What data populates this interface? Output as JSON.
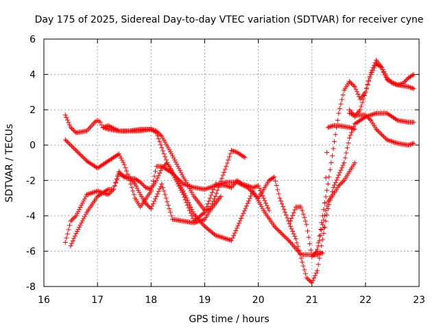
{
  "chart_data": {
    "type": "scatter",
    "title": "Day 175 of 2025, Sidereal Day-to-day VTEC variation (SDTVAR) for receiver cyne",
    "xlabel": "GPS time / hours",
    "ylabel": "SDTVAR / TECUs",
    "xlim": [
      16,
      23
    ],
    "ylim": [
      -8,
      6
    ],
    "xticks": [
      16,
      17,
      18,
      19,
      20,
      21,
      22,
      23
    ],
    "yticks": [
      -8,
      -6,
      -4,
      -2,
      0,
      2,
      4,
      6
    ],
    "grid": true,
    "marker": "+",
    "color": "#ff0000",
    "series": [
      {
        "x": [
          16.4,
          16.5,
          16.6,
          16.8,
          16.95,
          17.0,
          17.05,
          17.1,
          17.2,
          17.4,
          17.6,
          17.8,
          18.0,
          18.1,
          18.2,
          18.4,
          18.6,
          18.8,
          19.0,
          19.1,
          19.2,
          19.4,
          19.5,
          19.6,
          19.75
        ],
        "y": [
          1.7,
          1.0,
          0.7,
          0.8,
          1.3,
          1.4,
          1.3,
          1.0,
          0.9,
          0.8,
          0.8,
          0.9,
          0.9,
          0.8,
          0.5,
          -0.6,
          -1.8,
          -2.9,
          -3.7,
          -3.6,
          -2.9,
          -1.2,
          -0.3,
          -0.4,
          -0.7
        ]
      },
      {
        "x": [
          17.1,
          17.2,
          17.4,
          17.6,
          17.8,
          18.0,
          18.1,
          18.3,
          18.6,
          18.8,
          19.0,
          19.2,
          19.4,
          19.5,
          19.7,
          19.9,
          20.1,
          20.3,
          20.6,
          20.8,
          20.95,
          21.0,
          21.1,
          21.2,
          21.3,
          21.4,
          21.5,
          21.7,
          21.8
        ],
        "y": [
          1.0,
          1.1,
          0.8,
          0.8,
          0.8,
          0.9,
          0.7,
          -1.0,
          -2.6,
          -3.9,
          -4.6,
          -5.1,
          -5.3,
          -5.4,
          -4.0,
          -2.6,
          -3.7,
          -4.6,
          -5.5,
          -6.2,
          -6.2,
          -6.2,
          -6.2,
          -6.1,
          1.0,
          1.1,
          1.1,
          1.0,
          0.9
        ]
      },
      {
        "x": [
          16.4,
          16.6,
          16.8,
          17.0,
          17.2,
          17.4,
          17.5,
          17.6,
          17.7,
          17.8,
          18.0,
          18.1,
          18.2,
          18.4,
          18.6,
          18.8,
          19.0,
          19.2,
          19.4,
          19.6,
          19.8,
          20.0,
          20.2,
          20.3,
          20.4,
          20.6,
          20.7,
          20.9,
          21.0,
          21.1,
          21.3,
          21.4,
          21.6,
          21.7,
          21.8,
          22.0,
          22.2,
          22.4,
          22.6,
          22.8,
          22.9
        ],
        "y": [
          0.3,
          -0.3,
          -0.9,
          -1.3,
          -0.9,
          -0.5,
          -1.1,
          -2.0,
          -3.0,
          -3.5,
          -2.6,
          -1.2,
          -1.2,
          -1.6,
          -2.2,
          -2.4,
          -2.5,
          -2.3,
          -2.1,
          -2.1,
          -2.4,
          -3.0,
          -2.0,
          -1.8,
          -3.0,
          -4.6,
          -5.3,
          -7.5,
          -7.8,
          -7.1,
          -3.6,
          -2.4,
          -1.0,
          0.4,
          1.2,
          1.6,
          1.8,
          1.8,
          1.4,
          1.3,
          1.3
        ]
      },
      {
        "x": [
          16.4,
          16.5,
          16.6,
          16.8,
          17.0,
          17.2,
          17.3,
          17.4,
          17.5,
          17.6,
          17.7,
          17.8,
          17.9,
          18.0,
          18.2,
          18.4,
          18.6,
          18.8,
          19.0,
          19.1,
          19.2,
          19.3
        ],
        "y": [
          -5.5,
          -4.3,
          -4.0,
          -2.8,
          -2.6,
          -2.8,
          -2.5,
          -1.5,
          -1.8,
          -1.8,
          -2.2,
          -2.8,
          -3.3,
          -3.6,
          -2.2,
          -4.2,
          -4.3,
          -4.4,
          -4.2,
          -3.7,
          -3.3,
          -2.9
        ]
      },
      {
        "x": [
          16.5,
          16.6,
          16.8,
          17.0,
          17.1,
          17.2,
          17.3,
          17.4,
          17.5,
          17.6,
          17.7,
          17.8,
          17.9,
          18.0,
          18.1,
          18.2,
          18.3,
          18.4,
          18.6,
          18.8,
          19.0,
          19.2,
          19.4,
          19.5,
          19.6,
          19.7,
          19.9,
          20.0,
          20.2
        ],
        "y": [
          -5.7,
          -5.0,
          -3.8,
          -2.9,
          -2.7,
          -2.5,
          -2.5,
          -1.6,
          -1.8,
          -1.9,
          -1.9,
          -2.1,
          -2.4,
          -2.5,
          -2.0,
          -1.3,
          -1.0,
          -1.6,
          -2.8,
          -4.3,
          -3.8,
          -2.2,
          -2.3,
          -2.4,
          -2.0,
          -2.2,
          -2.4,
          -2.3,
          -3.7
        ]
      },
      {
        "x": [
          20.6,
          20.7,
          20.8,
          20.9,
          21.0,
          21.1,
          21.2,
          21.3,
          21.4,
          21.5,
          21.6,
          21.7,
          21.8
        ],
        "y": [
          -4.3,
          -3.5,
          -3.5,
          -4.5,
          -6.3,
          -6.0,
          -4.5,
          -3.2,
          -2.8,
          -2.3,
          -2.0,
          -1.5,
          -1.0
        ]
      },
      {
        "x": [
          21.05,
          21.1,
          21.2,
          21.3,
          21.4,
          21.5,
          21.6,
          21.7,
          21.8,
          21.9,
          22.0,
          22.1,
          22.2,
          22.3,
          22.4,
          22.6,
          22.8,
          22.9
        ],
        "y": [
          -6.2,
          -5.9,
          -4.0,
          -2.2,
          -0.2,
          1.8,
          3.1,
          3.6,
          3.3,
          2.6,
          3.0,
          4.1,
          4.8,
          4.4,
          3.7,
          3.4,
          3.3,
          3.2
        ]
      },
      {
        "x": [
          21.7,
          21.8,
          21.9,
          22.0,
          22.1,
          22.2,
          22.3,
          22.4,
          22.5,
          22.6,
          22.7,
          22.8,
          22.9
        ],
        "y": [
          2.0,
          1.6,
          2.0,
          3.0,
          4.0,
          4.6,
          4.4,
          3.8,
          3.5,
          3.4,
          3.5,
          3.8,
          4.0
        ]
      },
      {
        "x": [
          21.7,
          21.8,
          22.0,
          22.1,
          22.2,
          22.3,
          22.4,
          22.6,
          22.8,
          22.9
        ],
        "y": [
          1.8,
          1.7,
          1.7,
          1.4,
          0.9,
          0.6,
          0.3,
          0.1,
          0.0,
          0.1
        ]
      }
    ]
  }
}
